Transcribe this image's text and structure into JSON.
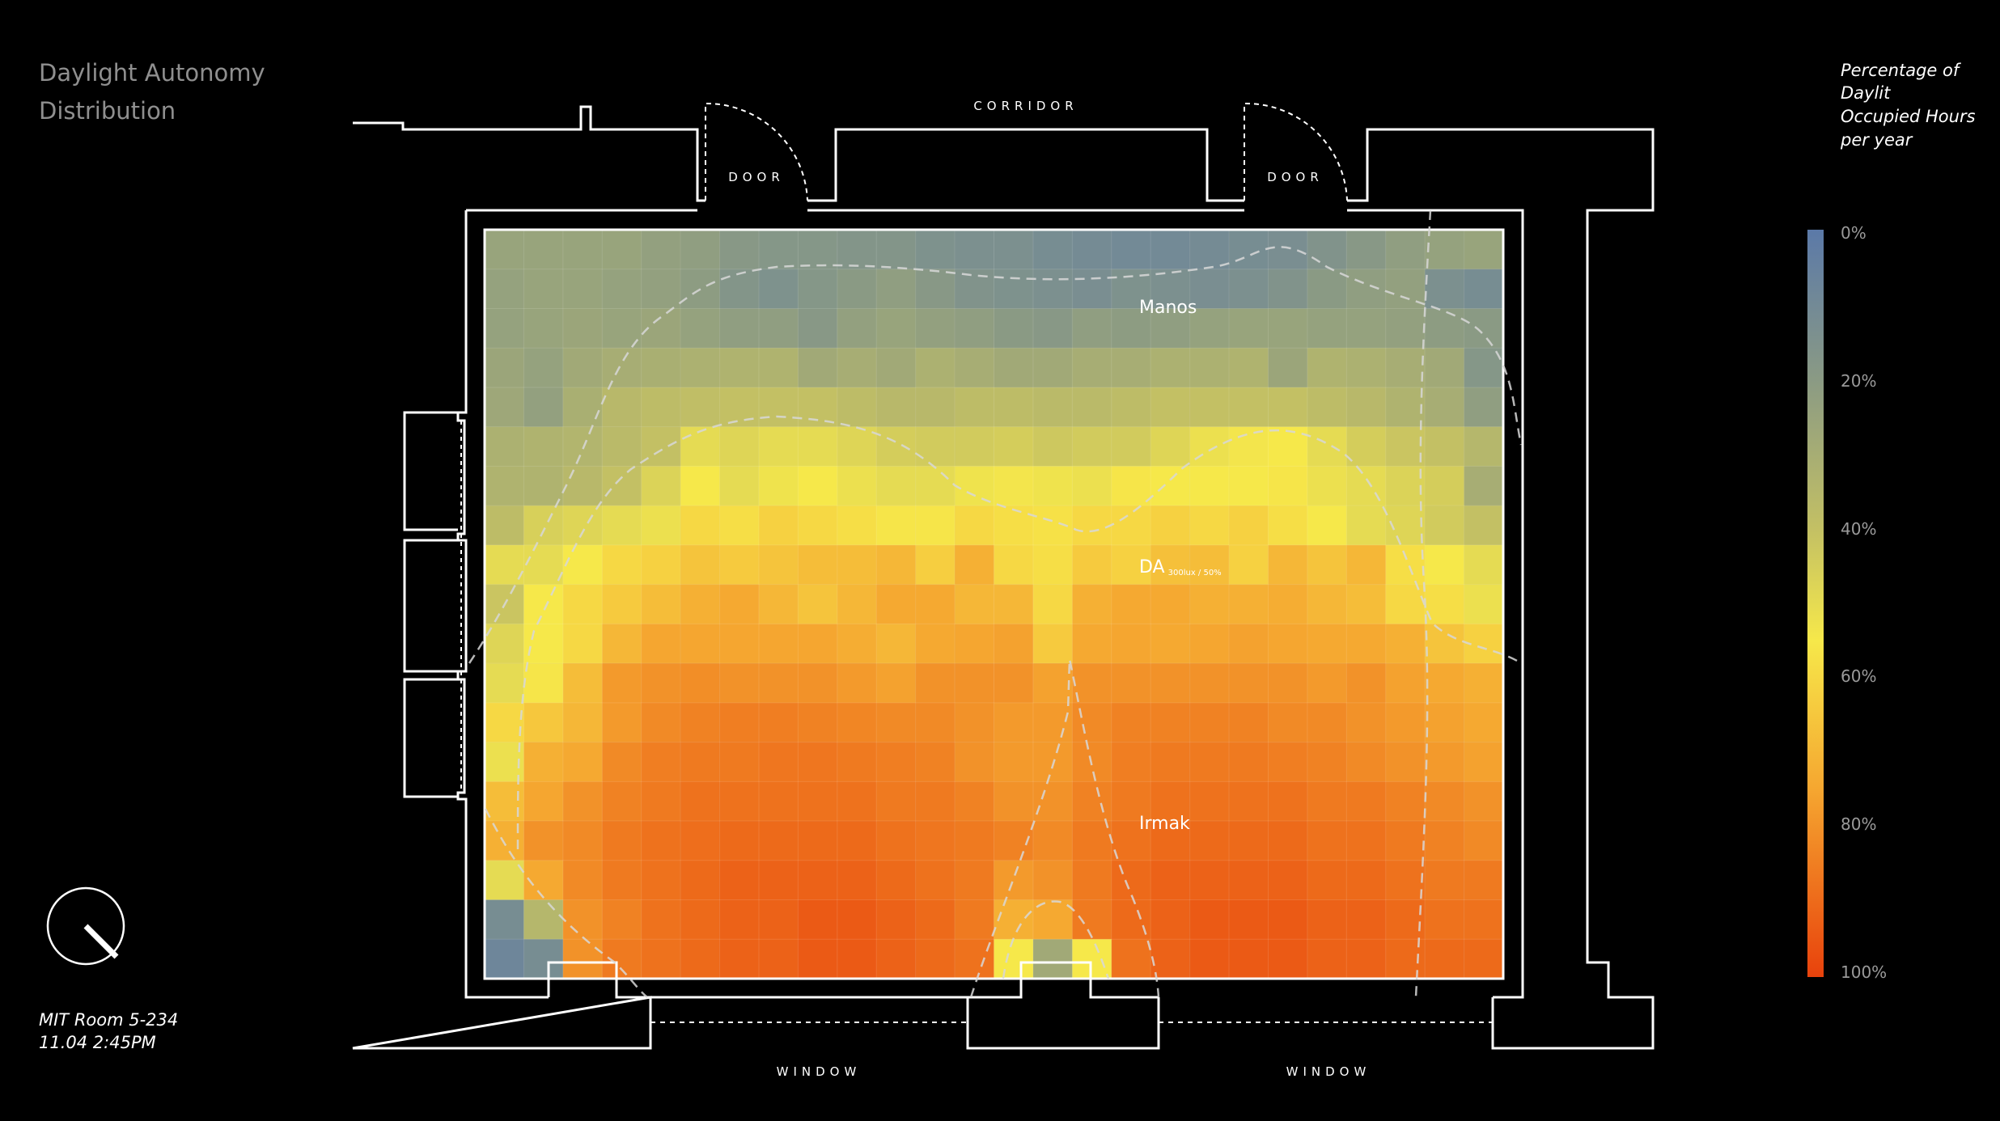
{
  "page": {
    "title_lines": [
      "Daylight Autonomy",
      "Distribution"
    ],
    "caption_lines": [
      "MIT Room 5-234",
      "11.04 2:45PM"
    ]
  },
  "plan": {
    "corridor": "CORRIDOR",
    "door_left": "DOOR",
    "door_right": "DOOR",
    "window_left": "WINDOW",
    "window_right": "WINDOW"
  },
  "zones": {
    "manos": "Manos",
    "da": "DA",
    "da_sub": "300lux / 50%",
    "irmak": "Irmak"
  },
  "legend": {
    "title_lines": [
      "Percentage of",
      "Daylit",
      "Occupied Hours",
      "per year"
    ],
    "ticks": [
      "0%",
      "20%",
      "40%",
      "60%",
      "80%",
      "100%"
    ]
  },
  "icons": {
    "compass": "north-arrow-icon"
  },
  "chart_data": {
    "type": "heatmap",
    "title": "Daylight Autonomy Distribution",
    "colorbar_label": "Percentage of Daylit Occupied Hours per year",
    "value_range": [
      0,
      100
    ],
    "colors": [
      "#5b79a8",
      "#8a9a84",
      "#c3c064",
      "#f6e84a",
      "#f5a630",
      "#e8420c"
    ],
    "rows": 19,
    "cols": 26,
    "values": [
      [
        25,
        25,
        25,
        25,
        23,
        22,
        19,
        18,
        18,
        17,
        17,
        15,
        14,
        14,
        12,
        11,
        10,
        10,
        11,
        12,
        13,
        16,
        19,
        22,
        24,
        25
      ],
      [
        24,
        25,
        25,
        24,
        23,
        21,
        17,
        15,
        18,
        20,
        22,
        19,
        16,
        15,
        14,
        13,
        15,
        14,
        13,
        14,
        16,
        20,
        22,
        23,
        14,
        12
      ],
      [
        24,
        25,
        26,
        25,
        26,
        24,
        22,
        22,
        19,
        23,
        25,
        23,
        22,
        20,
        19,
        22,
        21,
        22,
        24,
        25,
        25,
        24,
        24,
        23,
        21,
        20
      ],
      [
        26,
        24,
        28,
        30,
        31,
        32,
        33,
        33,
        28,
        30,
        28,
        32,
        30,
        28,
        28,
        30,
        30,
        32,
        32,
        33,
        26,
        33,
        32,
        30,
        28,
        18
      ],
      [
        27,
        23,
        31,
        36,
        38,
        39,
        40,
        40,
        40,
        38,
        36,
        36,
        38,
        38,
        37,
        37,
        38,
        40,
        40,
        40,
        40,
        38,
        36,
        33,
        30,
        22
      ],
      [
        32,
        33,
        34,
        37,
        40,
        50,
        48,
        50,
        50,
        48,
        45,
        44,
        44,
        45,
        43,
        44,
        44,
        48,
        52,
        54,
        55,
        50,
        45,
        42,
        40,
        35
      ],
      [
        33,
        33,
        36,
        40,
        47,
        55,
        50,
        53,
        55,
        52,
        50,
        50,
        53,
        54,
        53,
        52,
        56,
        55,
        55,
        55,
        56,
        52,
        50,
        47,
        45,
        30
      ],
      [
        38,
        46,
        48,
        50,
        52,
        60,
        58,
        62,
        60,
        58,
        56,
        56,
        60,
        58,
        57,
        60,
        60,
        62,
        60,
        62,
        58,
        55,
        50,
        48,
        44,
        40
      ],
      [
        50,
        50,
        55,
        60,
        62,
        66,
        64,
        66,
        68,
        68,
        70,
        63,
        72,
        60,
        58,
        64,
        62,
        67,
        68,
        62,
        70,
        66,
        70,
        58,
        55,
        50
      ],
      [
        42,
        55,
        60,
        64,
        68,
        72,
        74,
        70,
        66,
        70,
        74,
        74,
        70,
        70,
        60,
        72,
        74,
        74,
        72,
        72,
        73,
        70,
        68,
        60,
        58,
        52
      ],
      [
        48,
        55,
        60,
        70,
        75,
        75,
        75,
        75,
        75,
        73,
        70,
        74,
        75,
        76,
        64,
        74,
        75,
        74,
        75,
        76,
        75,
        74,
        74,
        72,
        66,
        62
      ],
      [
        50,
        56,
        68,
        78,
        80,
        81,
        80,
        80,
        80,
        78,
        76,
        80,
        80,
        80,
        76,
        80,
        80,
        80,
        80,
        80,
        80,
        78,
        80,
        76,
        74,
        72
      ],
      [
        60,
        65,
        70,
        78,
        82,
        84,
        85,
        85,
        84,
        83,
        82,
        82,
        80,
        78,
        78,
        82,
        84,
        84,
        84,
        84,
        82,
        82,
        80,
        78,
        76,
        74
      ],
      [
        52,
        72,
        74,
        82,
        85,
        86,
        86,
        87,
        87,
        86,
        85,
        84,
        80,
        78,
        78,
        82,
        85,
        86,
        86,
        86,
        85,
        84,
        82,
        80,
        78,
        76
      ],
      [
        68,
        75,
        80,
        84,
        86,
        88,
        88,
        88,
        88,
        88,
        86,
        86,
        84,
        80,
        80,
        84,
        86,
        88,
        88,
        88,
        88,
        86,
        86,
        84,
        82,
        80
      ],
      [
        72,
        80,
        82,
        86,
        88,
        89,
        90,
        90,
        90,
        90,
        88,
        87,
        86,
        84,
        82,
        86,
        88,
        90,
        90,
        90,
        90,
        88,
        88,
        86,
        84,
        82
      ],
      [
        50,
        74,
        82,
        86,
        88,
        90,
        92,
        92,
        92,
        92,
        90,
        88,
        86,
        78,
        80,
        86,
        90,
        92,
        92,
        92,
        92,
        90,
        90,
        88,
        86,
        86
      ],
      [
        12,
        35,
        80,
        84,
        88,
        90,
        92,
        92,
        94,
        94,
        92,
        90,
        86,
        72,
        74,
        86,
        90,
        92,
        94,
        94,
        94,
        92,
        92,
        90,
        88,
        88
      ],
      [
        8,
        12,
        80,
        86,
        88,
        90,
        92,
        92,
        94,
        94,
        92,
        90,
        88,
        55,
        28,
        55,
        88,
        92,
        94,
        94,
        94,
        92,
        92,
        90,
        90,
        90
      ]
    ]
  }
}
